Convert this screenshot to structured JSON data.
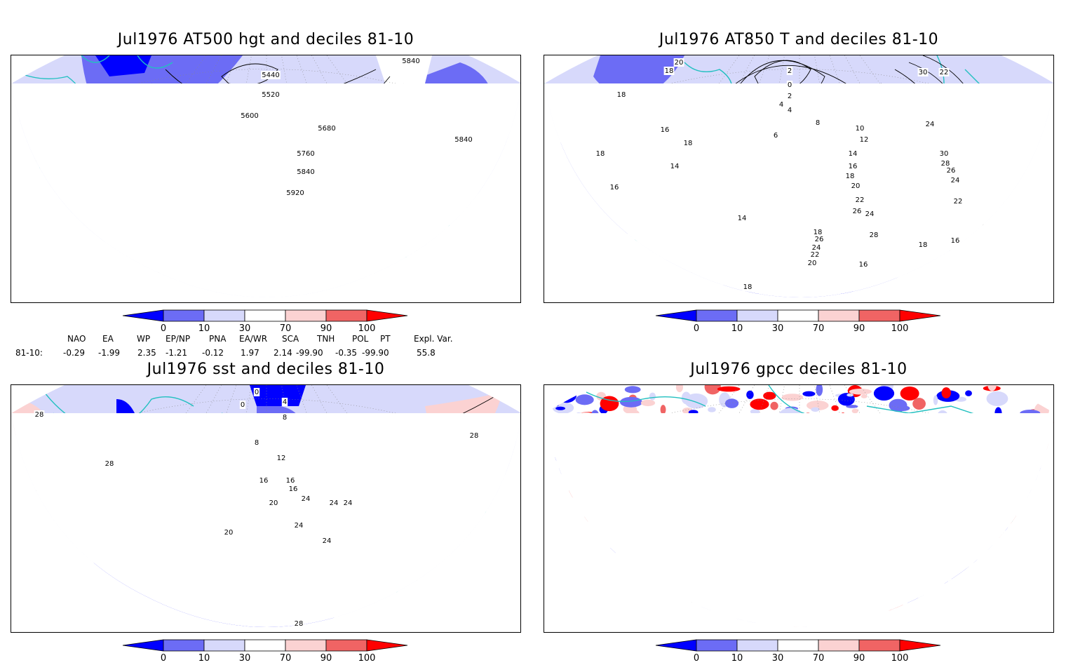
{
  "panels": [
    {
      "id": "p1",
      "title": "Jul1976 AT500 hgt and deciles 81-10",
      "contour_labels": [
        "5440",
        "5520",
        "5600",
        "5680",
        "5760",
        "5840",
        "5920",
        "5840",
        "5840"
      ]
    },
    {
      "id": "p2",
      "title": "Jul1976 AT850 T and deciles 81-10",
      "contour_labels": [
        "20",
        "18",
        "18",
        "16",
        "14",
        "16",
        "18",
        "2",
        "0",
        "2",
        "4",
        "4",
        "6",
        "8",
        "10",
        "12",
        "14",
        "16",
        "18",
        "20",
        "22",
        "24",
        "26",
        "28",
        "30",
        "22",
        "24",
        "30",
        "28",
        "26",
        "24",
        "22",
        "18",
        "16",
        "16",
        "14",
        "18",
        "18",
        "26",
        "24",
        "22",
        "20",
        "18",
        "16",
        "14"
      ]
    },
    {
      "id": "p3",
      "title": "Jul1976 sst and deciles 81-10",
      "contour_labels": [
        "28",
        "28",
        "28",
        "0",
        "0",
        "4",
        "8",
        "8",
        "12",
        "16",
        "16",
        "16",
        "20",
        "20",
        "24",
        "24",
        "24",
        "24",
        "24",
        "28"
      ]
    },
    {
      "id": "p4",
      "title": "Jul1976 gpcc deciles 81-10",
      "contour_labels": []
    }
  ],
  "colorbar": {
    "ticks": [
      "0",
      "10",
      "30",
      "70",
      "90",
      "100"
    ],
    "colors": [
      "#0000ff",
      "#6c6cf5",
      "#d7d9fb",
      "#ffffff",
      "#fbd2d2",
      "#f06464",
      "#ff0000"
    ]
  },
  "indices": {
    "names": [
      "NAO",
      "EA",
      "WP",
      "EP/NP",
      "PNA",
      "EA/WR",
      "SCA",
      "TNH",
      "POL",
      "PT",
      "Expl. Var."
    ],
    "row_label": "81-10:",
    "values": [
      "-0.29",
      "-1.99",
      "2.35",
      "-1.21",
      "-0.12",
      "1.97",
      "2.14",
      "-99.90",
      "-0.35",
      "-99.90",
      "55.8"
    ]
  },
  "colors": {
    "coast": "#22c0c0",
    "contour": "#000000",
    "frame": "#000000"
  }
}
